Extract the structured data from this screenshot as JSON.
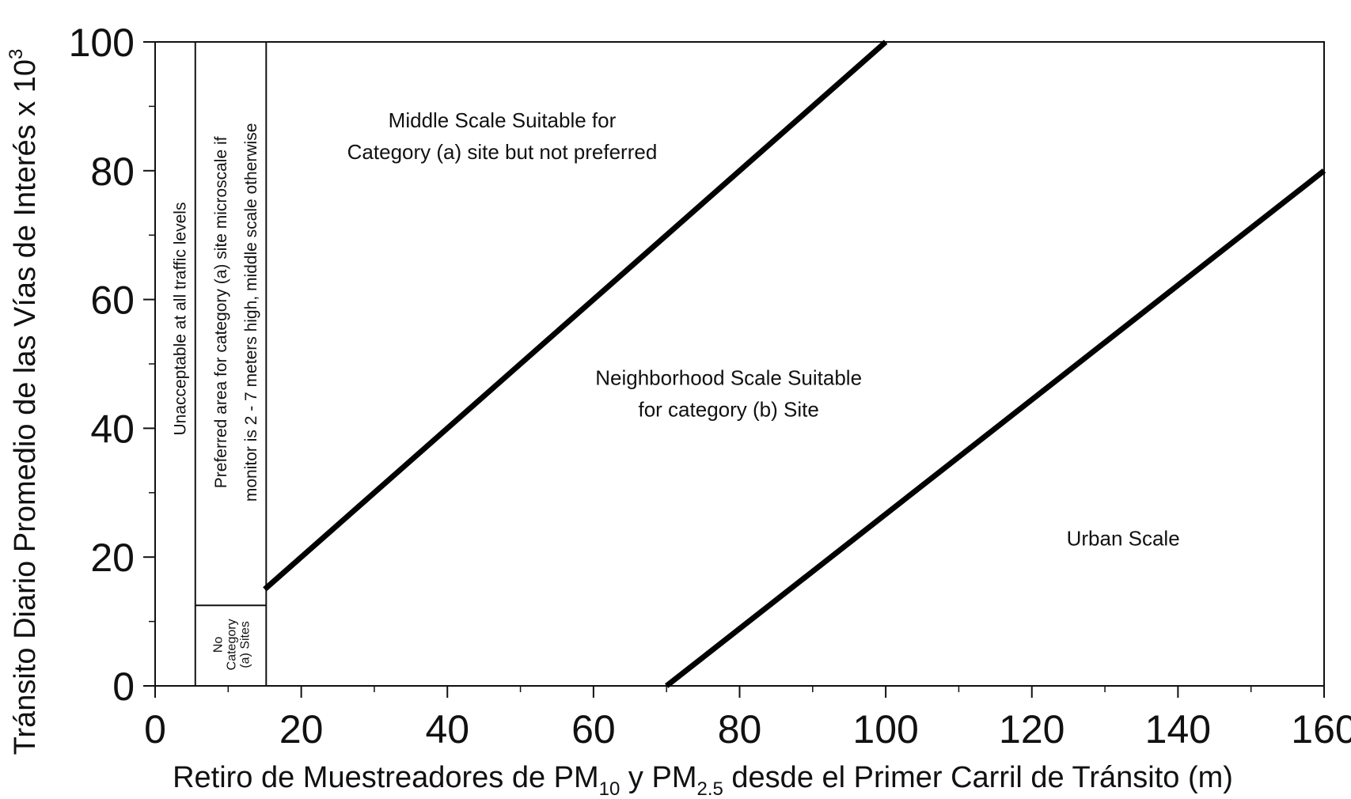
{
  "chart_data": {
    "type": "line",
    "xlabel": "Retiro de Muestreadores de PM10 y PM2.5 desde el Primer Carril de Tránsito (m)",
    "xlabel_parts": {
      "a": "Retiro de Muestreadores de PM",
      "sub1": "10",
      "b": " y PM",
      "sub2": "2.5",
      "c": " desde el Primer Carril de Tránsito (m)"
    },
    "ylabel": "Tránsito Diario Promedio de las Vías de Interés x 10³",
    "ylabel_parts": {
      "a": "Tránsito Diario Promedio de las Vías de Interés x 10",
      "sup": "3"
    },
    "xlim": [
      0,
      160
    ],
    "ylim": [
      0,
      100
    ],
    "x_ticks": [
      0,
      20,
      40,
      60,
      80,
      100,
      120,
      140,
      160
    ],
    "y_ticks": [
      0,
      20,
      40,
      60,
      80,
      100
    ],
    "x_minor_step": 10,
    "y_minor_step": 10,
    "grid": false,
    "series": [
      {
        "x": [
          15,
          100
        ],
        "y": [
          15,
          100
        ]
      },
      {
        "x": [
          70,
          160
        ],
        "y": [
          0,
          80
        ]
      }
    ],
    "vertical_lines": [
      {
        "x": 5.5,
        "y": [
          0,
          100
        ]
      },
      {
        "x": 15.2,
        "y": [
          0,
          100
        ]
      }
    ],
    "horizontal_lines": [
      {
        "x": [
          5.5,
          15.2
        ],
        "y": 12.5
      }
    ],
    "annotations": [
      {
        "id": "middle-scale",
        "lines": [
          "Middle Scale Suitable for",
          "Category (a) site but not preferred"
        ],
        "x": 47.5,
        "y": 86,
        "rotate": 0
      },
      {
        "id": "neighborhood-scale",
        "lines": [
          "Neighborhood Scale Suitable",
          "for category (b) Site"
        ],
        "x": 78.5,
        "y": 46,
        "rotate": 0
      },
      {
        "id": "urban-scale",
        "lines": [
          "Urban Scale"
        ],
        "x": 132.5,
        "y": 23.5,
        "rotate": 0
      },
      {
        "id": "unacceptable",
        "lines": [
          "Unacceptable at all traffic levels"
        ],
        "x": 2.75,
        "y": 57,
        "rotate": -90
      },
      {
        "id": "preferred-area",
        "lines": [
          "Preferred area for category (a) site microscale if",
          "monitor is 2 - 7 meters high, middle scale otherwise"
        ],
        "x": 10.35,
        "y": 58,
        "rotate": -90
      },
      {
        "id": "no-category",
        "lines": [
          "No",
          "Category",
          "(a) Sites"
        ],
        "x": 10.35,
        "y": 6.4,
        "rotate": -90
      }
    ]
  }
}
